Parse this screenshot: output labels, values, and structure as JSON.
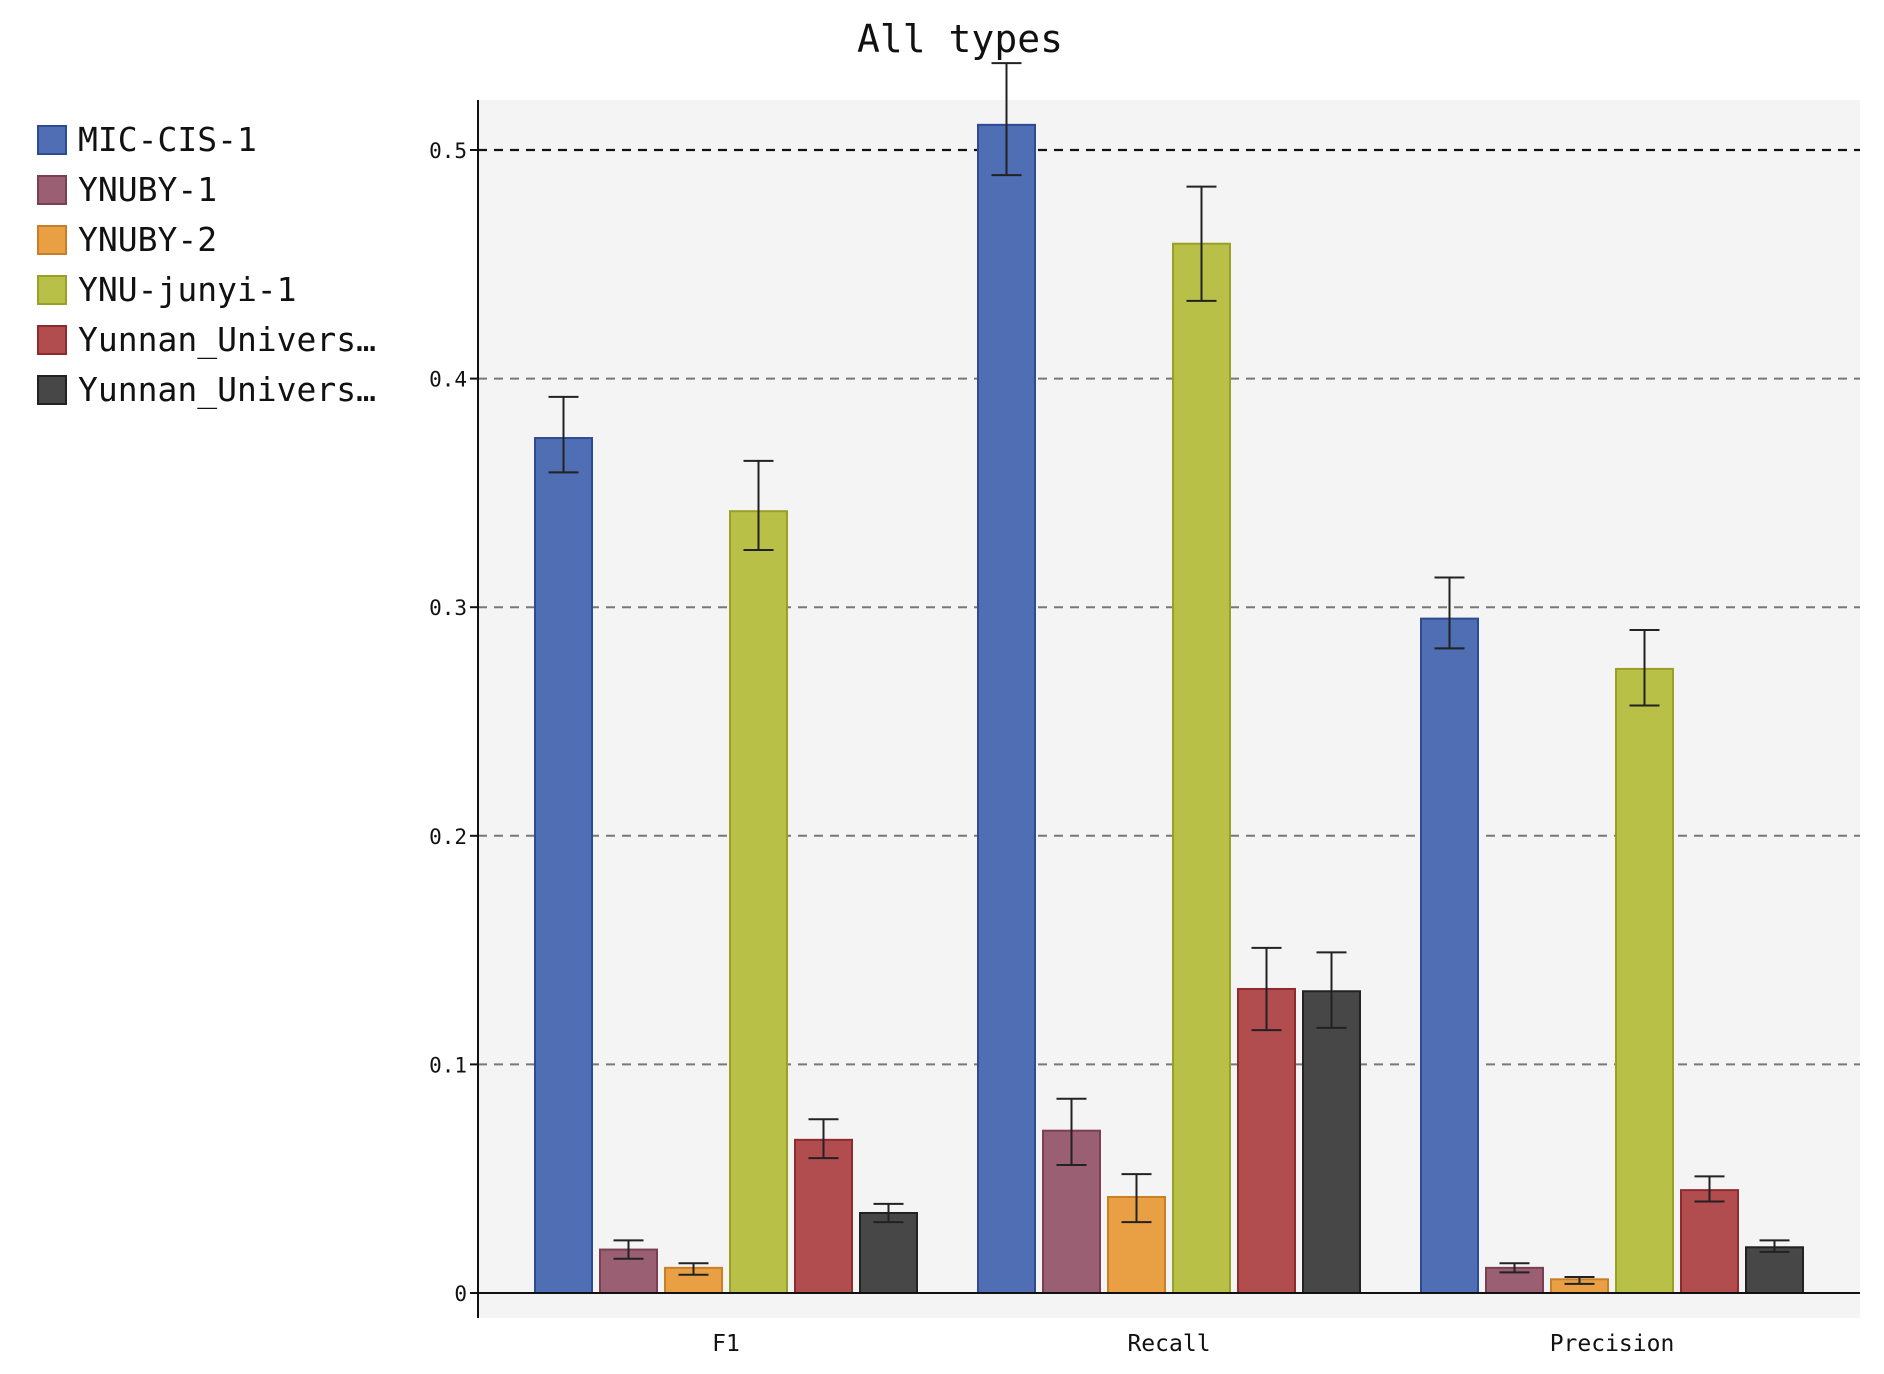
{
  "chart_data": {
    "type": "bar",
    "title": "All types",
    "xlabel": "",
    "ylabel": "",
    "categories": [
      "F1",
      "Recall",
      "Precision"
    ],
    "ylim": [
      0,
      0.52
    ],
    "yticks": [
      "0",
      "0.1",
      "0.2",
      "0.3",
      "0.4",
      "0.5"
    ],
    "ytick_values": [
      0,
      0.1,
      0.2,
      0.3,
      0.4,
      0.5
    ],
    "grid": "horizontal dashed",
    "reference_line": 0.5,
    "legend_position": "left",
    "series": [
      {
        "name": "MIC-CIS-1",
        "color": "#4f6eb3",
        "stroke": "#2d4a93",
        "values": [
          0.374,
          0.511,
          0.295
        ],
        "errors": [
          [
            0.359,
            0.392
          ],
          [
            0.489,
            0.538
          ],
          [
            0.282,
            0.313
          ]
        ]
      },
      {
        "name": "YNUBY-1",
        "color": "#9a5f72",
        "stroke": "#7a3f52",
        "values": [
          0.019,
          0.071,
          0.011
        ],
        "errors": [
          [
            0.015,
            0.023
          ],
          [
            0.056,
            0.085
          ],
          [
            0.009,
            0.013
          ]
        ]
      },
      {
        "name": "YNUBY-2",
        "color": "#e9a045",
        "stroke": "#c97f25",
        "values": [
          0.011,
          0.042,
          0.006
        ],
        "errors": [
          [
            0.008,
            0.013
          ],
          [
            0.031,
            0.052
          ],
          [
            0.004,
            0.007
          ]
        ]
      },
      {
        "name": "YNU-junyi-1",
        "color": "#b8c047",
        "stroke": "#98a027",
        "values": [
          0.342,
          0.459,
          0.273
        ],
        "errors": [
          [
            0.325,
            0.364
          ],
          [
            0.434,
            0.484
          ],
          [
            0.257,
            0.29
          ]
        ]
      },
      {
        "name": "Yunnan_Univers…",
        "color": "#b14c4f",
        "stroke": "#8f2a2f",
        "values": [
          0.067,
          0.133,
          0.045
        ],
        "errors": [
          [
            0.059,
            0.076
          ],
          [
            0.115,
            0.151
          ],
          [
            0.04,
            0.051
          ]
        ]
      },
      {
        "name": "Yunnan_Univers…",
        "color": "#474747",
        "stroke": "#222222",
        "values": [
          0.035,
          0.132,
          0.02
        ],
        "errors": [
          [
            0.031,
            0.039
          ],
          [
            0.116,
            0.149
          ],
          [
            0.018,
            0.023
          ]
        ]
      }
    ]
  }
}
